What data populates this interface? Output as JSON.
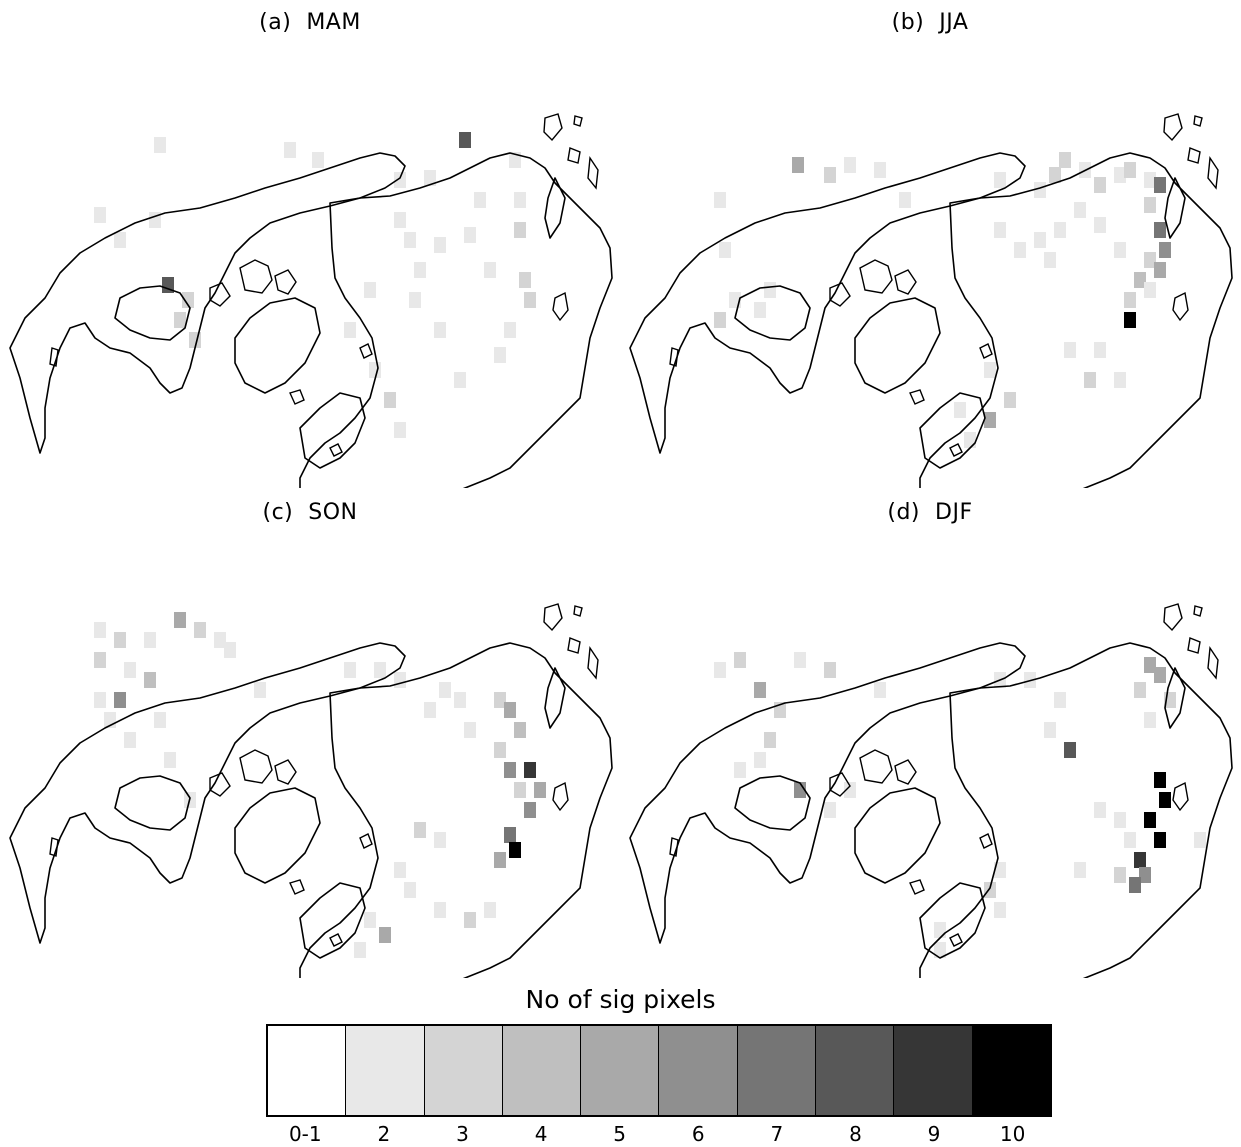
{
  "panels": [
    {
      "id": "a",
      "label": "(a)",
      "season": "MAM",
      "cells": [
        [
          160,
          145,
          2
        ],
        [
          100,
          215,
          2
        ],
        [
          155,
          220,
          2
        ],
        [
          120,
          240,
          2
        ],
        [
          168,
          285,
          8
        ],
        [
          188,
          300,
          3
        ],
        [
          180,
          320,
          3
        ],
        [
          195,
          340,
          3
        ],
        [
          290,
          150,
          2
        ],
        [
          318,
          160,
          2
        ],
        [
          400,
          180,
          2
        ],
        [
          430,
          178,
          2
        ],
        [
          465,
          140,
          8
        ],
        [
          480,
          200,
          2
        ],
        [
          515,
          160,
          2
        ],
        [
          520,
          200,
          2
        ],
        [
          520,
          230,
          3
        ],
        [
          470,
          235,
          2
        ],
        [
          440,
          245,
          2
        ],
        [
          410,
          240,
          2
        ],
        [
          400,
          220,
          2
        ],
        [
          490,
          270,
          2
        ],
        [
          525,
          280,
          3
        ],
        [
          530,
          300,
          3
        ],
        [
          510,
          330,
          2
        ],
        [
          500,
          355,
          2
        ],
        [
          420,
          270,
          2
        ],
        [
          440,
          330,
          2
        ],
        [
          460,
          380,
          2
        ],
        [
          390,
          400,
          3
        ],
        [
          400,
          430,
          2
        ],
        [
          375,
          370,
          2
        ],
        [
          415,
          300,
          2
        ],
        [
          350,
          330,
          2
        ],
        [
          370,
          290,
          2
        ]
      ]
    },
    {
      "id": "b",
      "label": "(b)",
      "season": "JJA",
      "cells": [
        [
          720,
          200,
          2
        ],
        [
          725,
          250,
          2
        ],
        [
          735,
          300,
          2
        ],
        [
          720,
          320,
          3
        ],
        [
          760,
          310,
          2
        ],
        [
          770,
          290,
          2
        ],
        [
          798,
          165,
          5
        ],
        [
          830,
          175,
          3
        ],
        [
          850,
          165,
          2
        ],
        [
          880,
          170,
          2
        ],
        [
          905,
          200,
          2
        ],
        [
          1000,
          180,
          2
        ],
        [
          1040,
          190,
          2
        ],
        [
          1055,
          175,
          3
        ],
        [
          1065,
          160,
          3
        ],
        [
          1085,
          170,
          2
        ],
        [
          1100,
          185,
          3
        ],
        [
          1120,
          175,
          2
        ],
        [
          1130,
          170,
          3
        ],
        [
          1150,
          180,
          2
        ],
        [
          1160,
          185,
          7
        ],
        [
          1150,
          205,
          3
        ],
        [
          1160,
          230,
          7
        ],
        [
          1165,
          250,
          6
        ],
        [
          1150,
          260,
          3
        ],
        [
          1160,
          270,
          5
        ],
        [
          1140,
          280,
          4
        ],
        [
          1150,
          290,
          2
        ],
        [
          1130,
          300,
          3
        ],
        [
          1130,
          320,
          10
        ],
        [
          1120,
          250,
          2
        ],
        [
          1100,
          225,
          2
        ],
        [
          1080,
          210,
          2
        ],
        [
          1060,
          230,
          2
        ],
        [
          1040,
          240,
          2
        ],
        [
          1050,
          260,
          2
        ],
        [
          1020,
          250,
          2
        ],
        [
          1000,
          230,
          2
        ],
        [
          1070,
          350,
          2
        ],
        [
          1090,
          380,
          3
        ],
        [
          990,
          370,
          2
        ],
        [
          960,
          410,
          2
        ],
        [
          1010,
          400,
          3
        ],
        [
          990,
          420,
          5
        ],
        [
          970,
          440,
          2
        ],
        [
          1100,
          350,
          2
        ],
        [
          1120,
          380,
          2
        ]
      ]
    },
    {
      "id": "c",
      "label": "(c)",
      "season": "SON",
      "cells": [
        [
          100,
          140,
          2
        ],
        [
          120,
          150,
          3
        ],
        [
          150,
          150,
          2
        ],
        [
          180,
          130,
          5
        ],
        [
          200,
          140,
          3
        ],
        [
          220,
          150,
          2
        ],
        [
          100,
          170,
          3
        ],
        [
          130,
          180,
          2
        ],
        [
          150,
          190,
          4
        ],
        [
          100,
          210,
          2
        ],
        [
          120,
          210,
          6
        ],
        [
          110,
          230,
          2
        ],
        [
          130,
          250,
          2
        ],
        [
          160,
          230,
          2
        ],
        [
          170,
          270,
          2
        ],
        [
          190,
          310,
          2
        ],
        [
          230,
          160,
          2
        ],
        [
          260,
          200,
          2
        ],
        [
          350,
          180,
          2
        ],
        [
          380,
          180,
          2
        ],
        [
          400,
          190,
          2
        ],
        [
          430,
          220,
          2
        ],
        [
          445,
          200,
          2
        ],
        [
          460,
          210,
          2
        ],
        [
          470,
          240,
          2
        ],
        [
          500,
          210,
          3
        ],
        [
          510,
          220,
          5
        ],
        [
          520,
          240,
          4
        ],
        [
          500,
          260,
          3
        ],
        [
          510,
          280,
          6
        ],
        [
          530,
          280,
          9
        ],
        [
          540,
          300,
          5
        ],
        [
          520,
          300,
          3
        ],
        [
          530,
          320,
          6
        ],
        [
          510,
          345,
          7
        ],
        [
          515,
          360,
          10
        ],
        [
          500,
          370,
          5
        ],
        [
          440,
          350,
          2
        ],
        [
          420,
          340,
          3
        ],
        [
          400,
          380,
          2
        ],
        [
          410,
          400,
          2
        ],
        [
          440,
          420,
          2
        ],
        [
          470,
          430,
          3
        ],
        [
          490,
          420,
          2
        ],
        [
          370,
          430,
          2
        ],
        [
          385,
          445,
          5
        ],
        [
          360,
          460,
          2
        ]
      ]
    },
    {
      "id": "d",
      "label": "(d)",
      "season": "DJF",
      "cells": [
        [
          720,
          180,
          2
        ],
        [
          740,
          170,
          3
        ],
        [
          760,
          200,
          5
        ],
        [
          780,
          220,
          3
        ],
        [
          770,
          250,
          3
        ],
        [
          760,
          270,
          2
        ],
        [
          740,
          280,
          2
        ],
        [
          800,
          170,
          2
        ],
        [
          830,
          180,
          3
        ],
        [
          800,
          300,
          6
        ],
        [
          830,
          320,
          2
        ],
        [
          850,
          300,
          2
        ],
        [
          880,
          200,
          2
        ],
        [
          1000,
          190,
          2
        ],
        [
          1030,
          190,
          2
        ],
        [
          1060,
          210,
          2
        ],
        [
          1050,
          240,
          2
        ],
        [
          1070,
          260,
          8
        ],
        [
          1150,
          175,
          5
        ],
        [
          1160,
          185,
          5
        ],
        [
          1140,
          200,
          3
        ],
        [
          1170,
          210,
          3
        ],
        [
          1150,
          230,
          2
        ],
        [
          1160,
          290,
          10
        ],
        [
          1165,
          310,
          10
        ],
        [
          1150,
          330,
          10
        ],
        [
          1160,
          350,
          10
        ],
        [
          1140,
          370,
          9
        ],
        [
          1145,
          385,
          6
        ],
        [
          1135,
          395,
          7
        ],
        [
          1120,
          385,
          3
        ],
        [
          1130,
          350,
          2
        ],
        [
          1120,
          330,
          2
        ],
        [
          1100,
          320,
          2
        ],
        [
          1080,
          380,
          2
        ],
        [
          1000,
          380,
          2
        ],
        [
          990,
          400,
          3
        ],
        [
          1000,
          420,
          2
        ],
        [
          940,
          440,
          2
        ],
        [
          940,
          460,
          2
        ],
        [
          1200,
          350,
          2
        ]
      ]
    }
  ],
  "legend": {
    "title": "No of sig pixels",
    "labels": [
      "0-1",
      "2",
      "3",
      "4",
      "5",
      "6",
      "7",
      "8",
      "9",
      "10"
    ],
    "colors": [
      "#ffffff",
      "#e8e8e8",
      "#d4d4d4",
      "#bfbfbf",
      "#a9a9a9",
      "#8f8f8f",
      "#757575",
      "#585858",
      "#363636",
      "#000000"
    ]
  }
}
